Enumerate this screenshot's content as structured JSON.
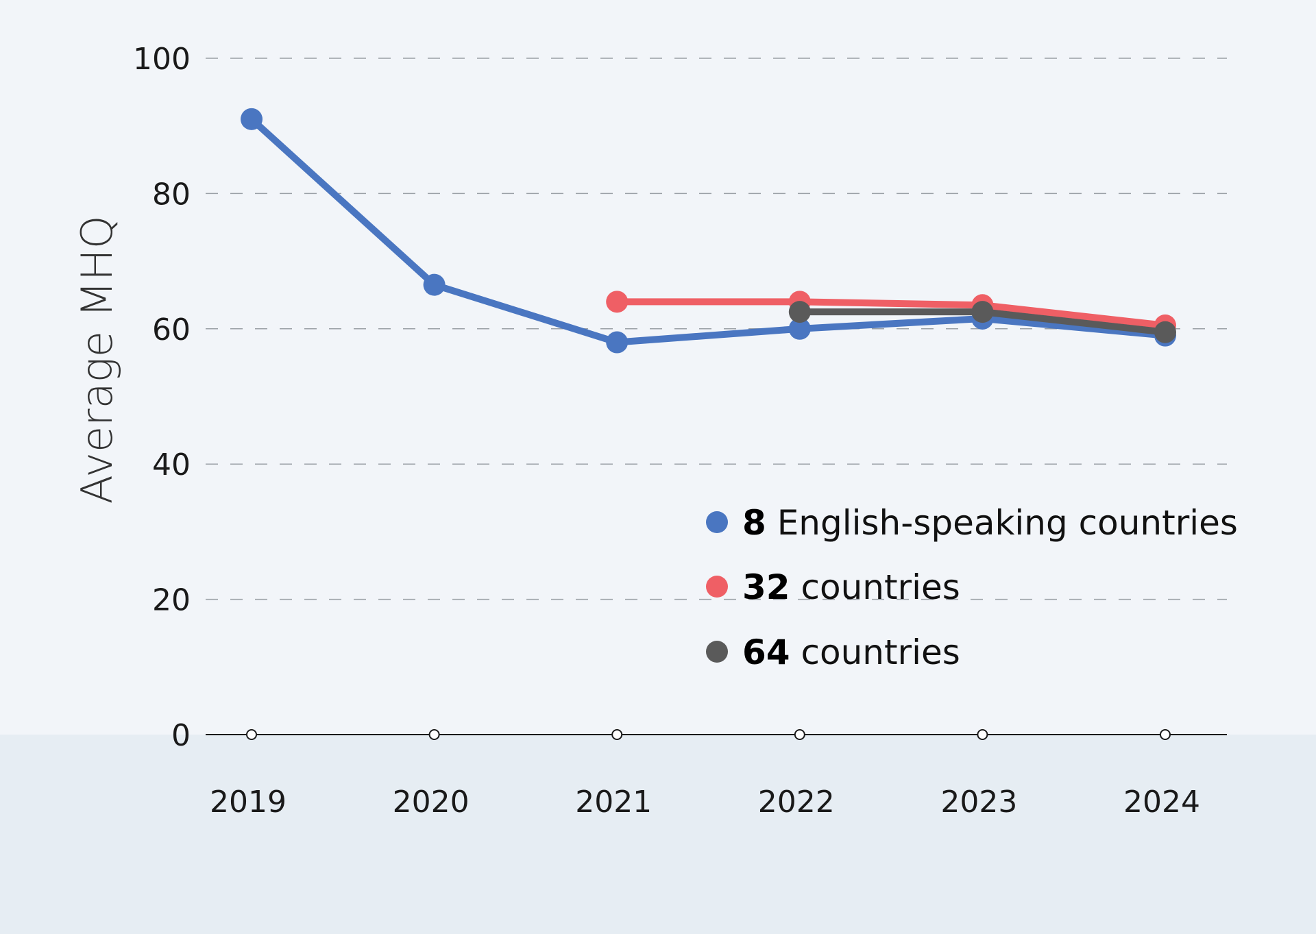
{
  "chart_data": {
    "type": "line",
    "ylabel": "Average MHQ",
    "xlabel": "",
    "ylim": [
      0,
      100
    ],
    "yticks": [
      0,
      20,
      40,
      60,
      80,
      100
    ],
    "x": [
      "2019",
      "2020",
      "2021",
      "2022",
      "2023",
      "2024"
    ],
    "grid": "horizontal-dashed",
    "legend_position": "center-right",
    "series": [
      {
        "count": "8",
        "label": "English-speaking countries",
        "color": "#4a76c1",
        "points": [
          [
            2019,
            91
          ],
          [
            2020,
            66.5
          ],
          [
            2021,
            58
          ],
          [
            2022,
            60
          ],
          [
            2023,
            61.5
          ],
          [
            2024,
            59
          ]
        ]
      },
      {
        "count": "32",
        "label": "countries",
        "color": "#ef5f65",
        "points": [
          [
            2021,
            64
          ],
          [
            2022,
            64
          ],
          [
            2023,
            63.5
          ],
          [
            2024,
            60.5
          ]
        ]
      },
      {
        "count": "64",
        "label": "countries",
        "color": "#5a5a5a",
        "points": [
          [
            2022,
            62.5
          ],
          [
            2023,
            62.5
          ],
          [
            2024,
            59.5
          ]
        ]
      }
    ]
  }
}
